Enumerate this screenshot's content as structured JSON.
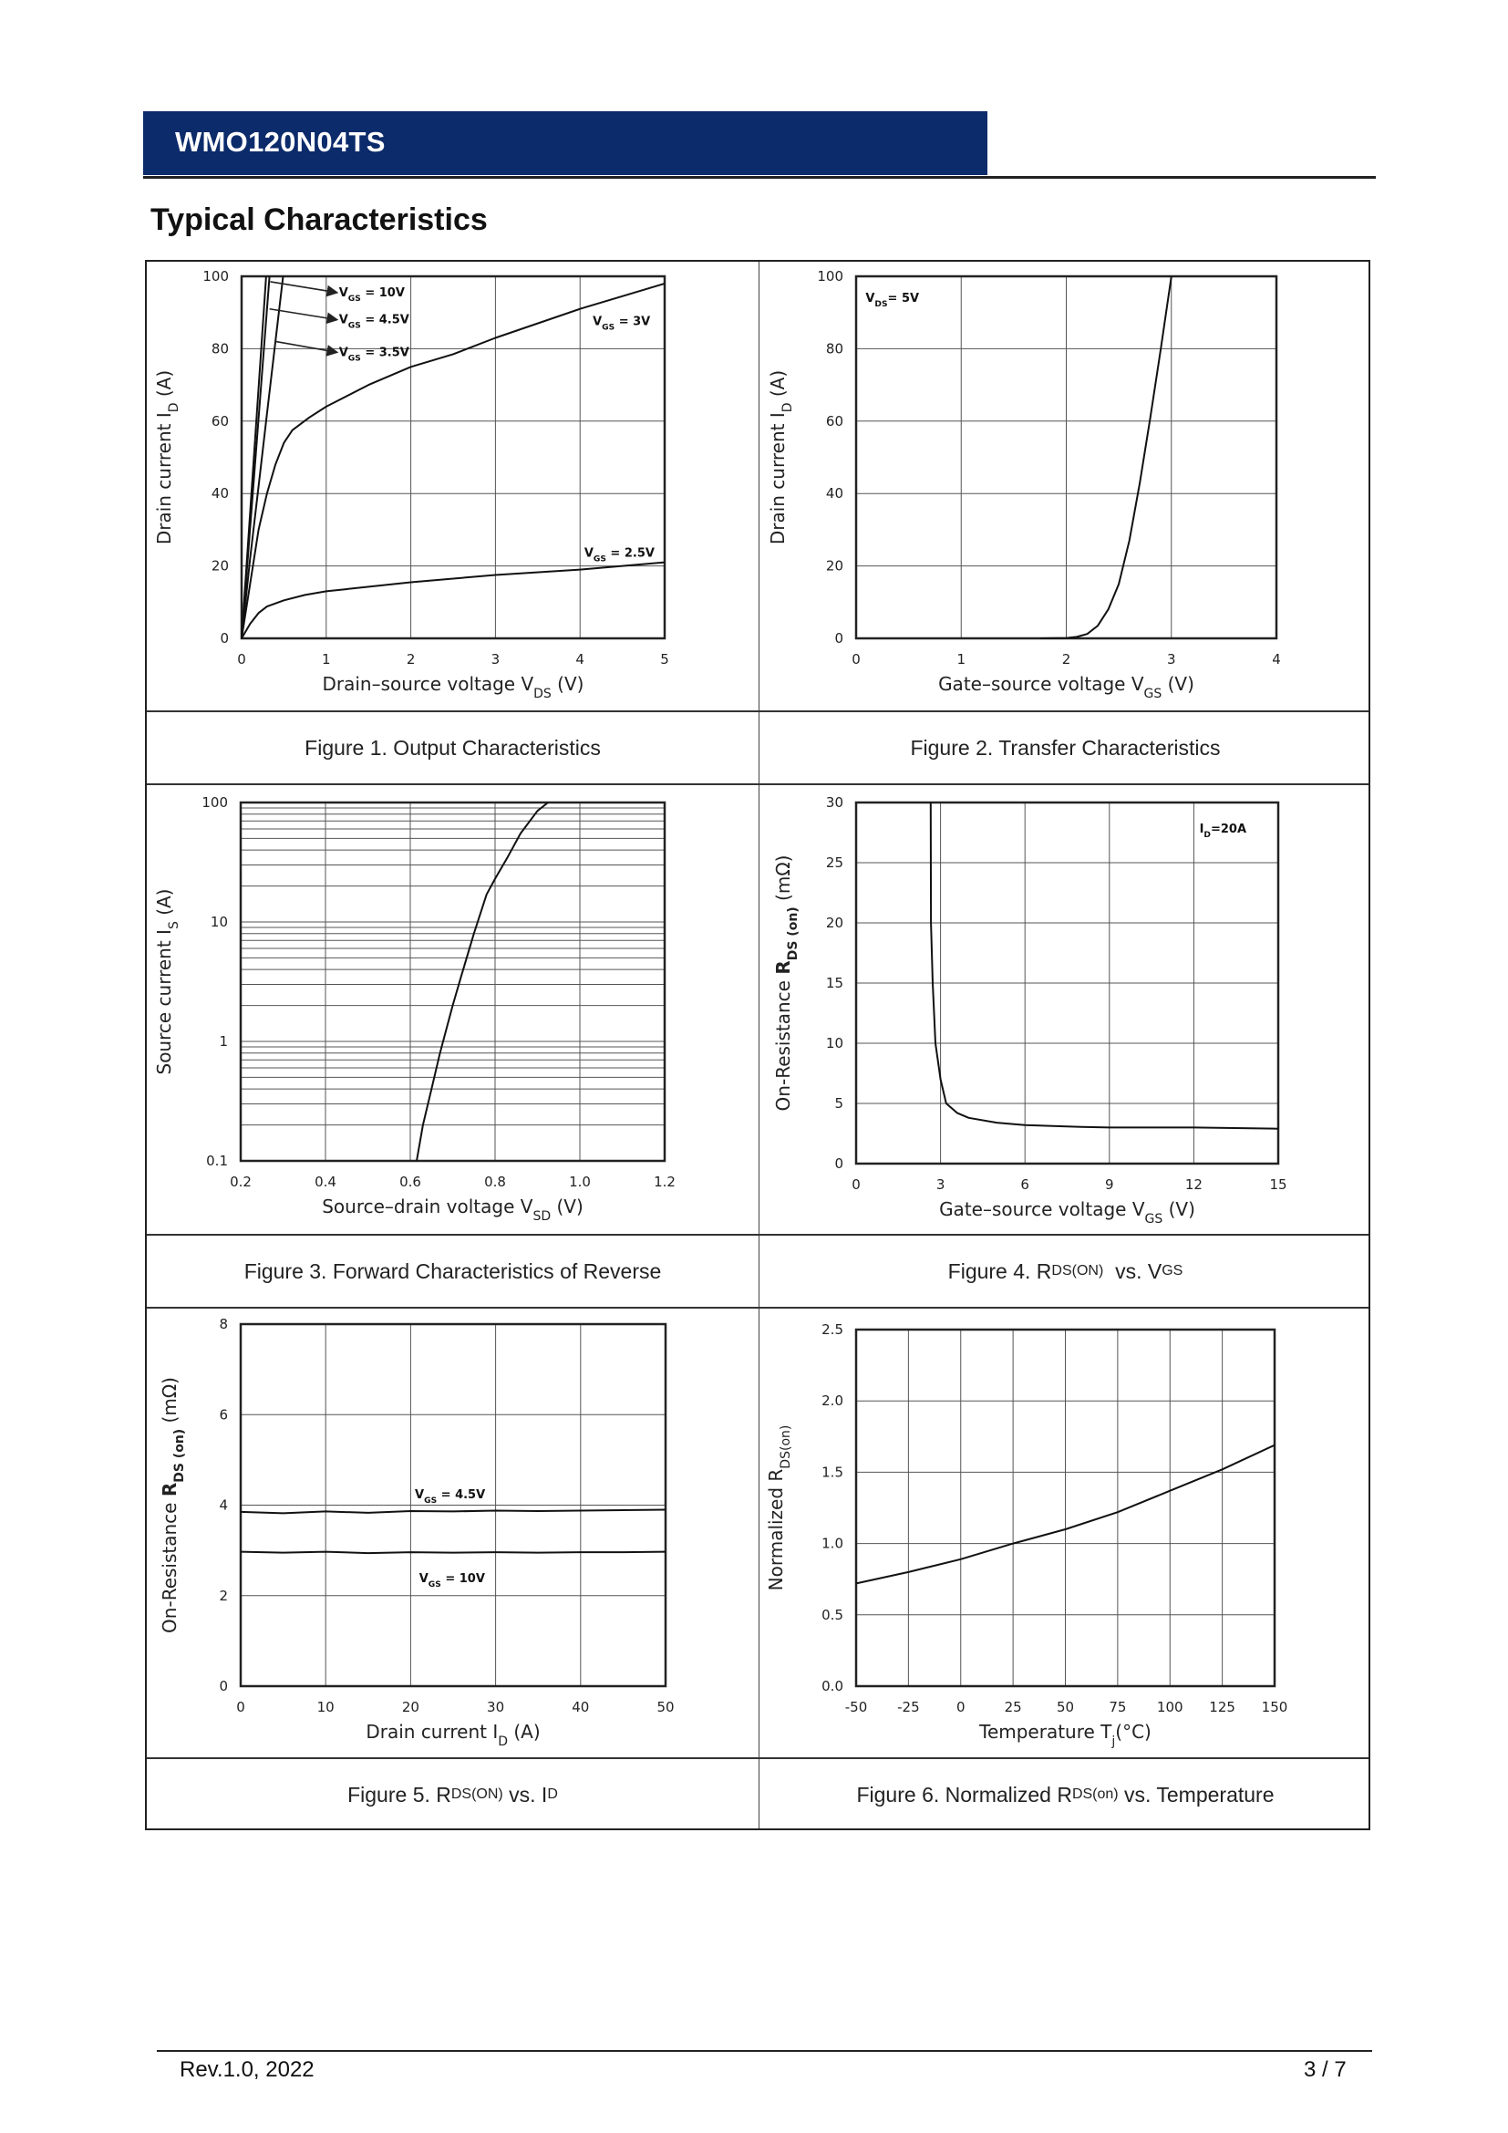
{
  "header": {
    "part_number": "WMO120N04TS",
    "bar_color": "#0c2b6b"
  },
  "section_title": "Typical Characteristics",
  "footer": {
    "revision": "Rev.1.0, 2022",
    "page": "3 / 7"
  },
  "captions": [
    [
      {
        "t": "Figure 1. Output Characteristics"
      }
    ],
    [
      {
        "t": "Figure 2. Transfer Characteristics"
      }
    ],
    [
      {
        "t": "Figure 3. Forward Characteristics of Reverse"
      }
    ],
    [
      {
        "t": "Figure 4. R"
      },
      {
        "t": "DS(ON)",
        "sub": true
      },
      {
        "t": "  vs. V"
      },
      {
        "t": "GS",
        "sub": true
      }
    ],
    [
      {
        "t": "Figure 5. R"
      },
      {
        "t": "DS(ON)",
        "sub": true
      },
      {
        "t": " vs. I"
      },
      {
        "t": "D",
        "sub": true
      }
    ],
    [
      {
        "t": "Figure 6. Normalized R"
      },
      {
        "t": "DS(on)",
        "sub": true
      },
      {
        "t": " vs. Temperature"
      }
    ]
  ],
  "chart_data": [
    {
      "type": "line",
      "xlabel": [
        {
          "t": "Drain–source voltage V"
        },
        {
          "t": "DS",
          "sub": true
        },
        {
          "t": " (V)"
        }
      ],
      "ylabel": [
        {
          "t": "Drain current I"
        },
        {
          "t": "D",
          "sub": true
        },
        {
          "t": " (A)"
        }
      ],
      "xlim": [
        0,
        5
      ],
      "ylim": [
        0,
        100
      ],
      "xticks": [
        "0",
        "1",
        "2",
        "3",
        "4",
        "5"
      ],
      "yticks": [
        "0",
        "20",
        "40",
        "60",
        "80",
        "100"
      ],
      "grid": true,
      "series": [
        {
          "name": "VGS = 10V",
          "points": [
            [
              0,
              0
            ],
            [
              0.29,
              100
            ]
          ]
        },
        {
          "name": "VGS = 4.5V",
          "points": [
            [
              0,
              0
            ],
            [
              0.33,
              100
            ]
          ]
        },
        {
          "name": "VGS = 3.5V",
          "points": [
            [
              0,
              0
            ],
            [
              0.1,
              22
            ],
            [
              0.2,
              42
            ],
            [
              0.3,
              62
            ],
            [
              0.4,
              82
            ],
            [
              0.49,
              100
            ]
          ]
        },
        {
          "name": "VGS = 3V",
          "points": [
            [
              0,
              0
            ],
            [
              0.1,
              15
            ],
            [
              0.2,
              30
            ],
            [
              0.3,
              40
            ],
            [
              0.4,
              48
            ],
            [
              0.5,
              54
            ],
            [
              0.6,
              57.5
            ],
            [
              0.8,
              61
            ],
            [
              1,
              64
            ],
            [
              1.5,
              70
            ],
            [
              2,
              75
            ],
            [
              2.5,
              78.5
            ],
            [
              3,
              83
            ],
            [
              4,
              91
            ],
            [
              5,
              98
            ]
          ]
        },
        {
          "name": "VGS = 2.5V",
          "points": [
            [
              0,
              0
            ],
            [
              0.1,
              4
            ],
            [
              0.2,
              7
            ],
            [
              0.3,
              8.8
            ],
            [
              0.5,
              10.5
            ],
            [
              0.75,
              12
            ],
            [
              1,
              13
            ],
            [
              2,
              15.5
            ],
            [
              3,
              17.5
            ],
            [
              4,
              19
            ],
            [
              5,
              21
            ]
          ]
        }
      ],
      "annotations": [
        {
          "label": [
            {
              "t": "V"
            },
            {
              "t": "GS",
              "sub": true
            },
            {
              "t": " = 10V"
            }
          ],
          "x": 1.15,
          "y": 94.5,
          "arrow_from": [
            0.34,
            98.5
          ]
        },
        {
          "label": [
            {
              "t": "V"
            },
            {
              "t": "GS",
              "sub": true
            },
            {
              "t": " = 4.5V"
            }
          ],
          "x": 1.15,
          "y": 87,
          "arrow_from": [
            0.33,
            91
          ]
        },
        {
          "label": [
            {
              "t": "V"
            },
            {
              "t": "GS",
              "sub": true
            },
            {
              "t": " = 3.5V"
            }
          ],
          "x": 1.15,
          "y": 78,
          "arrow_from": [
            0.4,
            82
          ]
        },
        {
          "label": [
            {
              "t": "V"
            },
            {
              "t": "GS",
              "sub": true
            },
            {
              "t": " = 3V"
            }
          ],
          "x": 4.15,
          "y": 86.5
        },
        {
          "label": [
            {
              "t": "V"
            },
            {
              "t": "GS",
              "sub": true
            },
            {
              "t": " = 2.5V"
            }
          ],
          "x": 4.05,
          "y": 22.5
        }
      ]
    },
    {
      "type": "line",
      "xlabel": [
        {
          "t": "Gate–source voltage V"
        },
        {
          "t": "GS",
          "sub": true
        },
        {
          "t": " (V)"
        }
      ],
      "ylabel": [
        {
          "t": "Drain current I"
        },
        {
          "t": "D",
          "sub": true
        },
        {
          "t": " (A)"
        }
      ],
      "xlim": [
        0,
        4
      ],
      "ylim": [
        0,
        100
      ],
      "xticks": [
        "0",
        "1",
        "2",
        "3",
        "4"
      ],
      "yticks": [
        "0",
        "20",
        "40",
        "60",
        "80",
        "100"
      ],
      "grid": true,
      "series": [
        {
          "points": [
            [
              1.75,
              0
            ],
            [
              2,
              0.1
            ],
            [
              2.1,
              0.4
            ],
            [
              2.2,
              1.2
            ],
            [
              2.3,
              3.5
            ],
            [
              2.4,
              8
            ],
            [
              2.5,
              15
            ],
            [
              2.6,
              27
            ],
            [
              2.7,
              43
            ],
            [
              2.8,
              61
            ],
            [
              2.9,
              80
            ],
            [
              3.0,
              100
            ]
          ]
        }
      ],
      "annotations": [
        {
          "label": [
            {
              "t": "V"
            },
            {
              "t": "DS",
              "sub": true
            },
            {
              "t": "= 5V"
            }
          ],
          "x": 0.09,
          "y": 93
        }
      ]
    },
    {
      "type": "line",
      "xlabel": [
        {
          "t": "Source–drain voltage V"
        },
        {
          "t": "SD",
          "sub": true
        },
        {
          "t": " (V)"
        }
      ],
      "ylabel": [
        {
          "t": "Source current I"
        },
        {
          "t": "S",
          "sub": true
        },
        {
          "t": " (A)"
        }
      ],
      "xlim": [
        0.2,
        1.2
      ],
      "ylim": [
        0.1,
        100
      ],
      "yscale": "log",
      "xticks": [
        "0.2",
        "0.4",
        "0.6",
        "0.8",
        "1.0",
        "1.2"
      ],
      "yticks": [
        "0.1",
        "1",
        "10",
        "100"
      ],
      "grid": true,
      "series": [
        {
          "points": [
            [
              0.615,
              0.1
            ],
            [
              0.63,
              0.2
            ],
            [
              0.65,
              0.4
            ],
            [
              0.67,
              0.8
            ],
            [
              0.7,
              2
            ],
            [
              0.72,
              3.5
            ],
            [
              0.75,
              8
            ],
            [
              0.78,
              17
            ],
            [
              0.8,
              23
            ],
            [
              0.83,
              35
            ],
            [
              0.86,
              55
            ],
            [
              0.9,
              85
            ],
            [
              0.925,
              100
            ]
          ]
        }
      ]
    },
    {
      "type": "line",
      "xlabel": [
        {
          "t": "Gate–source voltage V"
        },
        {
          "t": "GS",
          "sub": true
        },
        {
          "t": " (V)"
        }
      ],
      "ylabel": [
        {
          "t": "On-Resistance  "
        },
        {
          "t": "R",
          "bold": true
        },
        {
          "t": "DS (on)",
          "sub": true,
          "bold": true
        },
        {
          "t": " (mΩ)"
        }
      ],
      "xlim": [
        0,
        15
      ],
      "ylim": [
        0,
        30
      ],
      "xticks": [
        "0",
        "3",
        "6",
        "9",
        "12",
        "15"
      ],
      "yticks": [
        "0",
        "5",
        "10",
        "15",
        "20",
        "25",
        "30"
      ],
      "grid": true,
      "series": [
        {
          "points": [
            [
              2.65,
              30
            ],
            [
              2.66,
              20
            ],
            [
              2.72,
              15
            ],
            [
              2.82,
              10
            ],
            [
              3,
              7
            ],
            [
              3.2,
              5
            ],
            [
              3.6,
              4.2
            ],
            [
              4,
              3.8
            ],
            [
              5,
              3.4
            ],
            [
              6,
              3.2
            ],
            [
              8,
              3.05
            ],
            [
              9,
              3.0
            ],
            [
              12,
              3.0
            ],
            [
              15,
              2.9
            ]
          ]
        }
      ],
      "annotations": [
        {
          "label": [
            {
              "t": "I"
            },
            {
              "t": "D",
              "sub": true
            },
            {
              "t": "=20A"
            }
          ],
          "x": 12.2,
          "y": 27.5
        }
      ]
    },
    {
      "type": "line",
      "xlabel": [
        {
          "t": "Drain current I"
        },
        {
          "t": "D",
          "sub": true
        },
        {
          "t": " (A)"
        }
      ],
      "ylabel": [
        {
          "t": "On-Resistance  "
        },
        {
          "t": "R",
          "bold": true
        },
        {
          "t": "DS (on)",
          "sub": true,
          "bold": true
        },
        {
          "t": " (mΩ)"
        }
      ],
      "xlim": [
        0,
        50
      ],
      "ylim": [
        0,
        8
      ],
      "xticks": [
        "0",
        "10",
        "20",
        "30",
        "40",
        "50"
      ],
      "yticks": [
        "0",
        "2",
        "4",
        "6",
        "8"
      ],
      "grid": true,
      "series": [
        {
          "name": "VGS = 4.5V",
          "points": [
            [
              0,
              3.85
            ],
            [
              5,
              3.82
            ],
            [
              10,
              3.86
            ],
            [
              15,
              3.83
            ],
            [
              20,
              3.87
            ],
            [
              25,
              3.86
            ],
            [
              30,
              3.88
            ],
            [
              35,
              3.87
            ],
            [
              40,
              3.88
            ],
            [
              45,
              3.89
            ],
            [
              50,
              3.9
            ]
          ]
        },
        {
          "name": "VGS = 10V",
          "points": [
            [
              0,
              2.97
            ],
            [
              5,
              2.95
            ],
            [
              10,
              2.97
            ],
            [
              15,
              2.94
            ],
            [
              20,
              2.96
            ],
            [
              25,
              2.95
            ],
            [
              30,
              2.96
            ],
            [
              35,
              2.95
            ],
            [
              40,
              2.96
            ],
            [
              45,
              2.96
            ],
            [
              50,
              2.97
            ]
          ]
        }
      ],
      "annotations": [
        {
          "label": [
            {
              "t": "V"
            },
            {
              "t": "GS",
              "sub": true
            },
            {
              "t": " = 4.5V"
            }
          ],
          "x": 20.5,
          "y": 4.15
        },
        {
          "label": [
            {
              "t": "V"
            },
            {
              "t": "GS",
              "sub": true
            },
            {
              "t": " = 10V"
            }
          ],
          "x": 21,
          "y": 2.3
        }
      ]
    },
    {
      "type": "line",
      "xlabel": [
        {
          "t": "Temperature T"
        },
        {
          "t": "j",
          "sub": true
        },
        {
          "t": "(°C)"
        }
      ],
      "ylabel": [
        {
          "t": "Normalized R"
        },
        {
          "t": "DS(on)",
          "sub": true
        }
      ],
      "xlim": [
        -50,
        150
      ],
      "ylim": [
        0,
        2.5
      ],
      "xticks": [
        "-50",
        "-25",
        "0",
        "25",
        "50",
        "75",
        "100",
        "125",
        "150"
      ],
      "yticks": [
        "0.0",
        "0.5",
        "1.0",
        "1.5",
        "2.0",
        "2.5"
      ],
      "grid": true,
      "series": [
        {
          "points": [
            [
              -50,
              0.72
            ],
            [
              -25,
              0.8
            ],
            [
              0,
              0.89
            ],
            [
              25,
              1.0
            ],
            [
              50,
              1.1
            ],
            [
              75,
              1.22
            ],
            [
              100,
              1.37
            ],
            [
              125,
              1.52
            ],
            [
              150,
              1.69
            ]
          ]
        }
      ]
    }
  ]
}
